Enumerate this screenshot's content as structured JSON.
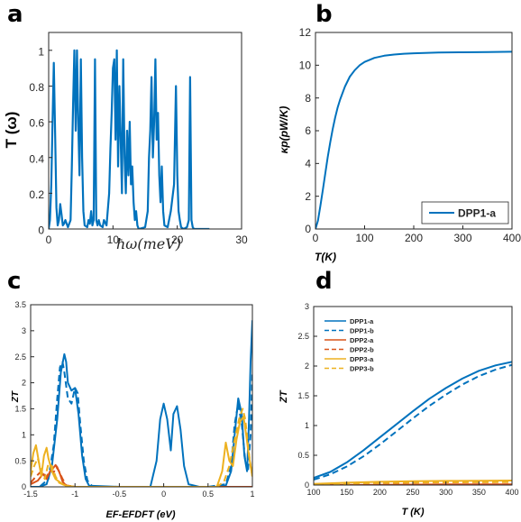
{
  "panel_letters": [
    "a",
    "b",
    "c",
    "d"
  ],
  "colors": {
    "blue": "#0072BD",
    "orange": "#D95319",
    "yellow": "#EDB120",
    "axis": "#262626"
  },
  "chart_data": [
    {
      "panel": "a",
      "type": "line",
      "xlabel": "ħω(meV)",
      "ylabel": "T (ω)",
      "xlim": [
        0,
        30
      ],
      "ylim": [
        0,
        1.1
      ],
      "xticks": [
        "0",
        "10",
        "20",
        "30"
      ],
      "yticks": [
        "0",
        "0.2",
        "0.4",
        "0.6",
        "0.8",
        "1"
      ],
      "grid": false,
      "series": [
        {
          "color": "#0072BD",
          "x": [
            0,
            0.2,
            0.4,
            0.6,
            0.8,
            1.0,
            1.2,
            1.4,
            1.6,
            1.8,
            2.0,
            2.2,
            2.4,
            2.6,
            3.0,
            3.4,
            3.6,
            3.8,
            4.0,
            4.2,
            4.4,
            4.6,
            4.8,
            5.0,
            5.2,
            5.4,
            5.6,
            6.0,
            6.2,
            6.4,
            6.6,
            6.8,
            7.0,
            7.2,
            7.4,
            7.6,
            7.8,
            8.0,
            8.4,
            8.6,
            9.0,
            9.4,
            9.6,
            9.8,
            10.0,
            10.2,
            10.4,
            10.6,
            10.8,
            11.0,
            11.2,
            11.4,
            11.6,
            11.8,
            12.0,
            12.2,
            12.4,
            12.6,
            12.8,
            13.0,
            13.2,
            13.4,
            13.6,
            13.8,
            14.0,
            15.0,
            15.4,
            15.6,
            15.8,
            16.0,
            16.2,
            16.4,
            16.6,
            16.8,
            17.0,
            17.2,
            17.4,
            17.6,
            17.8,
            18.0,
            18.5,
            19.0,
            19.5,
            19.8,
            20.0,
            20.2,
            20.4,
            20.6,
            21.0,
            21.5,
            21.8,
            22.0,
            22.2,
            22.4,
            22.6,
            23.0,
            24.0,
            25.0
          ],
          "y": [
            0,
            0.05,
            0.25,
            0.6,
            0.93,
            0.55,
            0.12,
            0.02,
            0.05,
            0.14,
            0.08,
            0.02,
            0.03,
            0.05,
            0.01,
            0.05,
            0.35,
            0.7,
            1.0,
            0.55,
            1.0,
            0.6,
            0.3,
            0.95,
            0.4,
            0.1,
            0.02,
            0.01,
            0.05,
            0.03,
            0.1,
            0.02,
            0.05,
            0.95,
            0.05,
            0.02,
            0.05,
            0.02,
            0.01,
            0.05,
            0.02,
            0.2,
            0.45,
            0.65,
            0.9,
            0.95,
            0.5,
            1.0,
            0.35,
            0.8,
            0.5,
            0.2,
            0.95,
            0.4,
            0.2,
            0.55,
            0.3,
            0.6,
            0.25,
            0.35,
            0.15,
            0.05,
            0.1,
            0.02,
            0.0,
            0.01,
            0.1,
            0.4,
            0.55,
            0.85,
            0.4,
            0.6,
            0.95,
            0.5,
            0.65,
            0.3,
            0.15,
            0.35,
            0.1,
            0.02,
            0.01,
            0.1,
            0.25,
            0.8,
            0.3,
            0.1,
            0.05,
            0.01,
            0.0,
            0.01,
            0.05,
            0.85,
            0.05,
            0.01,
            0.0,
            0.0,
            0.0,
            0.0
          ]
        }
      ]
    },
    {
      "panel": "b",
      "type": "line",
      "xlabel": "T(K)",
      "ylabel": "κp(pW/K)",
      "xlim": [
        0,
        400
      ],
      "ylim": [
        0,
        12
      ],
      "xticks": [
        "0",
        "100",
        "200",
        "300",
        "400"
      ],
      "yticks": [
        "0",
        "2",
        "4",
        "6",
        "8",
        "10",
        "12"
      ],
      "grid": false,
      "legend_position": "bottom-right",
      "series": [
        {
          "name": "DPP1-a",
          "color": "#0072BD",
          "x": [
            0,
            5,
            10,
            15,
            20,
            25,
            30,
            35,
            40,
            45,
            50,
            60,
            70,
            80,
            90,
            100,
            120,
            140,
            160,
            180,
            200,
            250,
            300,
            350,
            400
          ],
          "y": [
            0,
            0.5,
            1.4,
            2.4,
            3.4,
            4.4,
            5.3,
            6.1,
            6.8,
            7.4,
            7.9,
            8.7,
            9.3,
            9.7,
            10.0,
            10.2,
            10.45,
            10.58,
            10.65,
            10.7,
            10.73,
            10.77,
            10.79,
            10.8,
            10.82
          ]
        }
      ]
    },
    {
      "panel": "c",
      "type": "line",
      "xlabel": "EF-EFDFT (eV)",
      "ylabel": "ZT",
      "xlim": [
        -1.5,
        1
      ],
      "ylim": [
        0,
        3.5
      ],
      "xticks": [
        "-1.5",
        "-1",
        "-0.5",
        "0",
        "0.5",
        "1"
      ],
      "yticks": [
        "0",
        "0.5",
        "1",
        "1.5",
        "2",
        "2.5",
        "3",
        "3.5"
      ],
      "grid": false,
      "series": [
        {
          "color": "#0072BD",
          "dash": false,
          "x": [
            -1.5,
            -1.4,
            -1.32,
            -1.26,
            -1.2,
            -1.16,
            -1.12,
            -1.1,
            -1.08,
            -1.04,
            -1.0,
            -0.96,
            -0.92,
            -0.88,
            -0.84,
            -0.5,
            -0.15,
            -0.08,
            -0.04,
            0.0,
            0.04,
            0.08,
            0.11,
            0.15,
            0.19,
            0.23,
            0.28,
            0.4,
            0.6,
            0.7,
            0.76,
            0.8,
            0.84,
            0.88,
            0.91,
            0.94,
            0.96,
            0.98,
            1.0
          ],
          "y": [
            0,
            0.0,
            0.05,
            0.4,
            1.3,
            2.2,
            2.55,
            2.4,
            2.0,
            1.85,
            1.9,
            1.4,
            0.6,
            0.15,
            0.02,
            0.0,
            0.0,
            0.5,
            1.3,
            1.6,
            1.3,
            0.7,
            1.4,
            1.55,
            1.1,
            0.4,
            0.05,
            0.0,
            0.0,
            0.02,
            0.3,
            1.0,
            1.7,
            1.4,
            0.6,
            0.3,
            1.2,
            2.4,
            3.2
          ]
        },
        {
          "color": "#0072BD",
          "dash": true,
          "x": [
            -1.5,
            -1.4,
            -1.3,
            -1.24,
            -1.2,
            -1.17,
            -1.14,
            -1.12,
            -1.08,
            -1.04,
            -1.0,
            -0.97,
            -0.94,
            -0.9,
            -0.86,
            -0.8,
            -0.5,
            0.5,
            0.7,
            0.76,
            0.8,
            0.84,
            0.88,
            0.92,
            0.95,
            0.98,
            1.0
          ],
          "y": [
            0,
            0.0,
            0.15,
            0.8,
            1.7,
            2.3,
            2.4,
            2.2,
            1.7,
            1.6,
            1.9,
            1.8,
            1.2,
            0.5,
            0.12,
            0.0,
            0.0,
            0.0,
            0.05,
            0.4,
            1.2,
            1.6,
            1.2,
            0.5,
            0.3,
            1.0,
            2.2
          ]
        },
        {
          "color": "#D95319",
          "dash": false,
          "x": [
            -1.5,
            -1.42,
            -1.36,
            -1.32,
            -1.28,
            -1.25,
            -1.22,
            -1.2,
            -1.17,
            -1.14,
            -1.1,
            -1.0,
            1.0
          ],
          "y": [
            0.05,
            0.12,
            0.25,
            0.15,
            0.3,
            0.35,
            0.42,
            0.38,
            0.25,
            0.1,
            0.02,
            0.0,
            0.0
          ]
        },
        {
          "color": "#D95319",
          "dash": true,
          "x": [
            -1.5,
            -1.44,
            -1.38,
            -1.32,
            -1.27,
            -1.24,
            -1.21,
            -1.18,
            -1.14,
            -1.1,
            -1.0,
            1.0
          ],
          "y": [
            0.08,
            0.2,
            0.3,
            0.2,
            0.32,
            0.28,
            0.38,
            0.3,
            0.15,
            0.03,
            0.0,
            0.0
          ]
        },
        {
          "color": "#EDB120",
          "dash": false,
          "x": [
            -1.5,
            -1.47,
            -1.44,
            -1.41,
            -1.38,
            -1.35,
            -1.32,
            -1.3,
            -1.26,
            -1.22,
            -1.18,
            -1.14,
            -1.1,
            -1.0,
            0.6,
            0.66,
            0.7,
            0.74,
            0.78,
            0.82,
            0.86,
            0.9,
            0.93,
            0.96,
            1.0
          ],
          "y": [
            0.3,
            0.65,
            0.8,
            0.5,
            0.2,
            0.6,
            0.75,
            0.55,
            0.3,
            0.15,
            0.1,
            0.05,
            0.02,
            0.0,
            0.0,
            0.3,
            0.85,
            0.5,
            0.4,
            0.9,
            1.25,
            1.35,
            1.0,
            0.6,
            0.2
          ]
        },
        {
          "color": "#EDB120",
          "dash": true,
          "x": [
            -1.5,
            -1.46,
            -1.42,
            -1.38,
            -1.34,
            -1.3,
            -1.26,
            -1.22,
            -1.18,
            -1.1,
            -1.0,
            0.6,
            0.68,
            0.74,
            0.8,
            0.85,
            0.89,
            0.92,
            0.95,
            0.98,
            1.0
          ],
          "y": [
            0.2,
            0.4,
            0.55,
            0.3,
            0.15,
            0.45,
            0.4,
            0.2,
            0.08,
            0.02,
            0.0,
            0.0,
            0.1,
            0.4,
            0.9,
            1.3,
            1.5,
            1.3,
            0.8,
            0.4,
            0.2
          ]
        }
      ]
    },
    {
      "panel": "d",
      "type": "line",
      "xlabel": "T (K)",
      "ylabel": "ZT",
      "xlim": [
        100,
        400
      ],
      "ylim": [
        0,
        3
      ],
      "xticks": [
        "100",
        "150",
        "200",
        "250",
        "300",
        "350",
        "400"
      ],
      "yticks": [
        "0",
        "0.5",
        "1",
        "1.5",
        "2",
        "2.5",
        "3"
      ],
      "grid": false,
      "legend_position": "top-left",
      "series": [
        {
          "name": "DPP1-a",
          "color": "#0072BD",
          "dash": false,
          "x": [
            100,
            125,
            150,
            175,
            200,
            225,
            250,
            275,
            300,
            325,
            350,
            375,
            400
          ],
          "y": [
            0.12,
            0.22,
            0.38,
            0.58,
            0.8,
            1.02,
            1.24,
            1.45,
            1.63,
            1.79,
            1.92,
            2.01,
            2.07
          ]
        },
        {
          "name": "DPP1-b",
          "color": "#0072BD",
          "dash": true,
          "x": [
            100,
            125,
            150,
            175,
            200,
            225,
            250,
            275,
            300,
            325,
            350,
            375,
            400
          ],
          "y": [
            0.09,
            0.18,
            0.31,
            0.48,
            0.68,
            0.9,
            1.12,
            1.33,
            1.52,
            1.69,
            1.83,
            1.94,
            2.02
          ]
        },
        {
          "name": "DPP2-a",
          "color": "#D95319",
          "dash": false,
          "x": [
            100,
            200,
            300,
            400
          ],
          "y": [
            0.0,
            0.005,
            0.01,
            0.012
          ]
        },
        {
          "name": "DPP2-b",
          "color": "#D95319",
          "dash": true,
          "x": [
            100,
            200,
            300,
            400
          ],
          "y": [
            0.0,
            0.004,
            0.008,
            0.01
          ]
        },
        {
          "name": "DPP3-a",
          "color": "#EDB120",
          "dash": false,
          "x": [
            100,
            150,
            200,
            250,
            300,
            350,
            400
          ],
          "y": [
            0.02,
            0.04,
            0.055,
            0.065,
            0.07,
            0.072,
            0.075
          ]
        },
        {
          "name": "DPP3-b",
          "color": "#EDB120",
          "dash": true,
          "x": [
            100,
            150,
            200,
            250,
            300,
            350,
            400
          ],
          "y": [
            0.01,
            0.025,
            0.035,
            0.04,
            0.045,
            0.047,
            0.05
          ]
        }
      ]
    }
  ]
}
